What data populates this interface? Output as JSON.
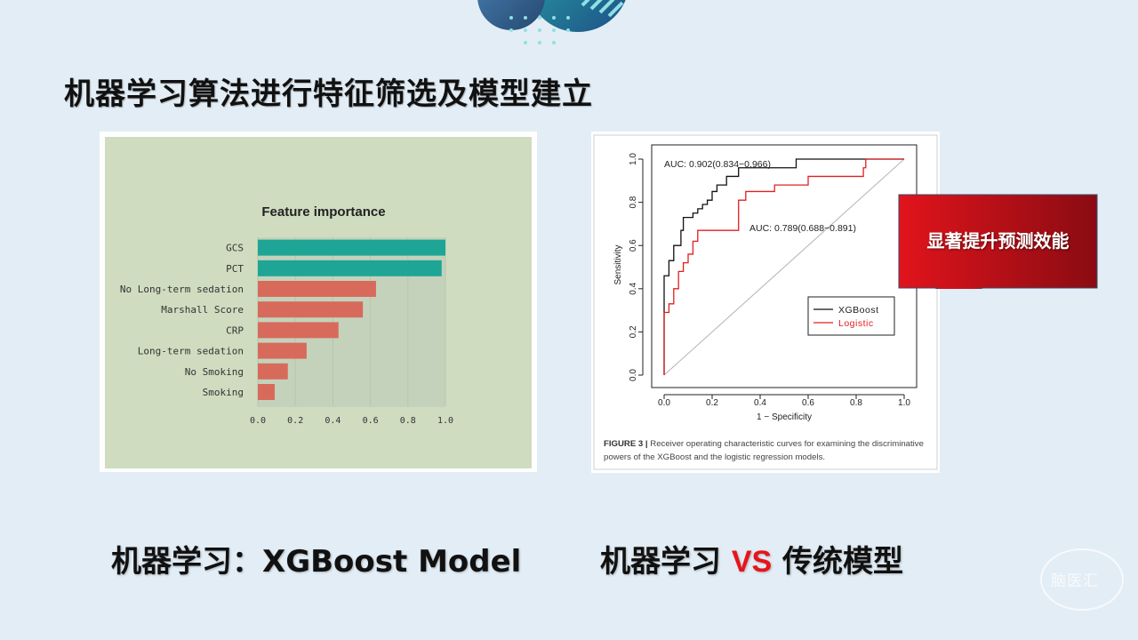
{
  "slide": {
    "title": "机器学习算法进行特征筛选及模型建立",
    "left_label": "机器学习：XGBoost Model",
    "right_label_pre": "机器学习 ",
    "right_label_vs": "VS",
    "right_label_post": " 传统模型",
    "callout": "显著提升预测效能",
    "watermark": "脑医汇",
    "colors": {
      "vs": "#e8141b",
      "callout": "#c8101a",
      "background": "#e3edf5"
    }
  },
  "figure_caption": {
    "label": "FIGURE 3 |",
    "text": " Receiver operating characteristic curves for examining the discriminative powers of the XGBoost and the logistic regression models."
  },
  "chart_data": [
    {
      "type": "bar",
      "orientation": "horizontal",
      "title": "Feature importance",
      "categories": [
        "GCS",
        "PCT",
        "No Long-term sedation",
        "Marshall Score",
        "CRP",
        "Long-term sedation",
        "No Smoking",
        "Smoking"
      ],
      "values": [
        1.0,
        0.98,
        0.63,
        0.56,
        0.43,
        0.26,
        0.16,
        0.09
      ],
      "bar_colors": [
        "#1fa596",
        "#1fa596",
        "#d86a5c",
        "#d86a5c",
        "#d86a5c",
        "#d86a5c",
        "#d86a5c",
        "#d86a5c"
      ],
      "xlim": [
        0,
        1.0
      ],
      "xticks": [
        "0.0",
        "0.2",
        "0.4",
        "0.6",
        "0.8",
        "1.0"
      ],
      "grid": true,
      "background": "#cfdcc0"
    },
    {
      "type": "line",
      "xlabel": "1 − Specificity",
      "ylabel": "Sensitivity",
      "xlim": [
        0,
        1.0
      ],
      "ylim": [
        0,
        1.0
      ],
      "xticks": [
        "0.0",
        "0.2",
        "0.4",
        "0.6",
        "0.8",
        "1.0"
      ],
      "yticks": [
        "0.0",
        "0.2",
        "0.4",
        "0.6",
        "0.8",
        "1.0"
      ],
      "legend": "bottom-right",
      "annotations": [
        "AUC: 0.902(0.834−0.966)",
        "AUC: 0.789(0.688−0.891)"
      ],
      "series": [
        {
          "name": "XGBoost",
          "color": "#111111",
          "x": [
            0,
            0,
            0.02,
            0.02,
            0.04,
            0.04,
            0.07,
            0.07,
            0.08,
            0.08,
            0.12,
            0.12,
            0.14,
            0.14,
            0.16,
            0.16,
            0.18,
            0.18,
            0.2,
            0.2,
            0.22,
            0.22,
            0.26,
            0.26,
            0.31,
            0.31,
            0.4,
            0.4,
            0.55,
            0.55,
            0.84,
            0.84,
            1.0
          ],
          "y": [
            0,
            0.46,
            0.46,
            0.53,
            0.53,
            0.6,
            0.6,
            0.67,
            0.67,
            0.73,
            0.73,
            0.75,
            0.75,
            0.77,
            0.77,
            0.79,
            0.79,
            0.81,
            0.81,
            0.85,
            0.85,
            0.88,
            0.88,
            0.92,
            0.92,
            0.96,
            0.96,
            0.96,
            0.96,
            1.0,
            1.0,
            1.0,
            1.0
          ]
        },
        {
          "name": "Logistic",
          "color": "#e02020",
          "x": [
            0,
            0,
            0.02,
            0.02,
            0.04,
            0.04,
            0.06,
            0.06,
            0.08,
            0.08,
            0.1,
            0.1,
            0.12,
            0.12,
            0.14,
            0.14,
            0.19,
            0.19,
            0.31,
            0.31,
            0.34,
            0.34,
            0.46,
            0.46,
            0.6,
            0.6,
            0.78,
            0.78,
            0.83,
            0.83,
            0.84,
            0.84,
            1.0
          ],
          "y": [
            0,
            0.29,
            0.29,
            0.33,
            0.33,
            0.4,
            0.4,
            0.48,
            0.48,
            0.52,
            0.52,
            0.56,
            0.56,
            0.62,
            0.62,
            0.67,
            0.67,
            0.67,
            0.67,
            0.81,
            0.81,
            0.85,
            0.85,
            0.88,
            0.88,
            0.92,
            0.92,
            0.92,
            0.92,
            0.96,
            0.96,
            1.0,
            1.0
          ]
        }
      ],
      "reference_line": {
        "x": [
          0,
          1
        ],
        "y": [
          0,
          1
        ],
        "color": "#b3b3b3"
      }
    }
  ]
}
